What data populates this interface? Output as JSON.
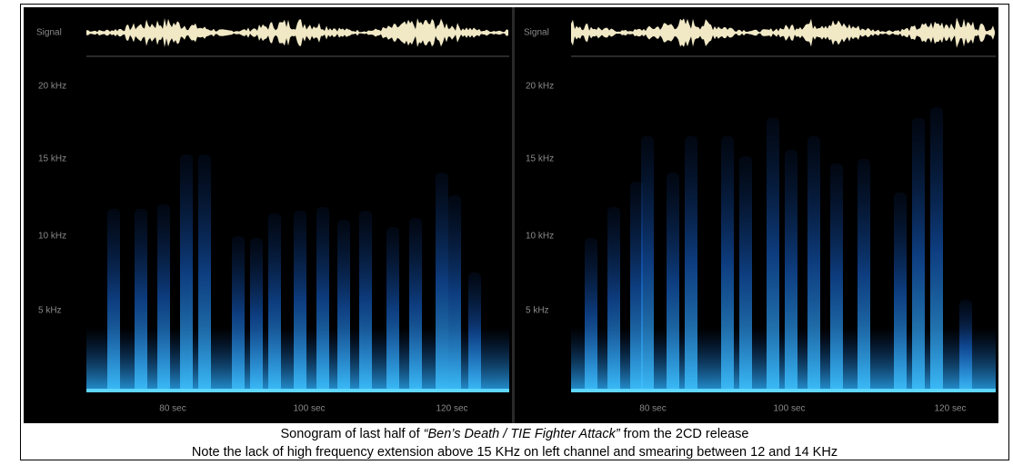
{
  "panels": [
    {
      "signal_label": "Signal",
      "y_labels": [
        "20 kHz",
        "15 kHz",
        "10 kHz",
        "5 kHz"
      ],
      "x_labels": [
        "80 sec",
        "100 sec",
        "120 sec"
      ]
    },
    {
      "signal_label": "Signal",
      "y_labels": [
        "20 kHz",
        "15 kHz",
        "10 kHz",
        "5 kHz"
      ],
      "x_labels": [
        "80 sec",
        "100 sec",
        "120 sec"
      ]
    }
  ],
  "caption": {
    "line1": [
      "Sonogram of last half of ",
      "“Ben’s Death / TIE Fighter Attack”",
      " from the 2CD release"
    ],
    "line2": "Note the lack of high frequency extension above 15 KHz on left channel and smearing between 12 and 14 KHz"
  }
}
